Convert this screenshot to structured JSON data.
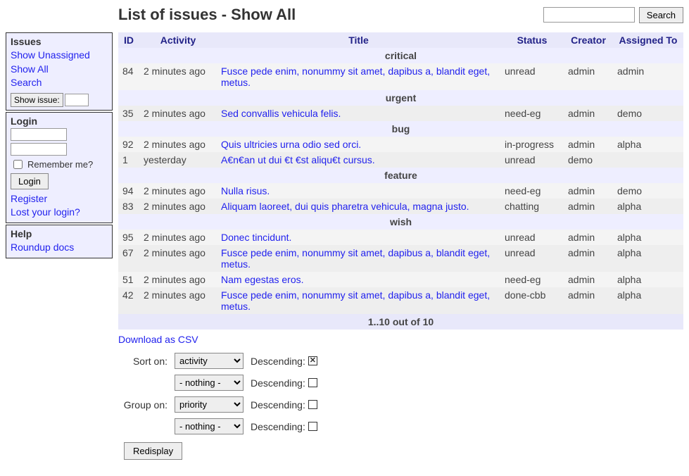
{
  "header": {
    "title": "List of issues - Show All",
    "search_placeholder": "",
    "search_button": "Search"
  },
  "sidebar": {
    "issues": {
      "heading": "Issues",
      "links": [
        "Show Unassigned",
        "Show All",
        "Search"
      ],
      "show_issue_button": "Show issue:"
    },
    "login": {
      "heading": "Login",
      "remember_label": "Remember me?",
      "login_button": "Login",
      "links": [
        "Register",
        "Lost your login?"
      ]
    },
    "help": {
      "heading": "Help",
      "links": [
        "Roundup docs"
      ]
    }
  },
  "table": {
    "columns": [
      "ID",
      "Activity",
      "Title",
      "Status",
      "Creator",
      "Assigned To"
    ],
    "groups": [
      {
        "label": "critical",
        "rows": [
          {
            "id": "84",
            "activity": "2 minutes ago",
            "title": "Fusce pede enim, nonummy sit amet, dapibus a, blandit eget, metus.",
            "status": "unread",
            "creator": "admin",
            "assigned": "admin"
          }
        ]
      },
      {
        "label": "urgent",
        "rows": [
          {
            "id": "35",
            "activity": "2 minutes ago",
            "title": "Sed convallis vehicula felis.",
            "status": "need-eg",
            "creator": "admin",
            "assigned": "demo"
          }
        ]
      },
      {
        "label": "bug",
        "rows": [
          {
            "id": "92",
            "activity": "2 minutes ago",
            "title": "Quis ultricies urna odio sed orci.",
            "status": "in-progress",
            "creator": "admin",
            "assigned": "alpha"
          },
          {
            "id": "1",
            "activity": "yesterday",
            "title": "A€n€an ut dui €t €st aliqu€t cursus.",
            "status": "unread",
            "creator": "demo",
            "assigned": ""
          }
        ]
      },
      {
        "label": "feature",
        "rows": [
          {
            "id": "94",
            "activity": "2 minutes ago",
            "title": "Nulla risus.",
            "status": "need-eg",
            "creator": "admin",
            "assigned": "demo"
          },
          {
            "id": "83",
            "activity": "2 minutes ago",
            "title": "Aliquam laoreet, dui quis pharetra vehicula, magna justo.",
            "status": "chatting",
            "creator": "admin",
            "assigned": "alpha"
          }
        ]
      },
      {
        "label": "wish",
        "rows": [
          {
            "id": "95",
            "activity": "2 minutes ago",
            "title": "Donec tincidunt.",
            "status": "unread",
            "creator": "admin",
            "assigned": "alpha"
          },
          {
            "id": "67",
            "activity": "2 minutes ago",
            "title": "Fusce pede enim, nonummy sit amet, dapibus a, blandit eget, metus.",
            "status": "unread",
            "creator": "admin",
            "assigned": "alpha"
          },
          {
            "id": "51",
            "activity": "2 minutes ago",
            "title": "Nam egestas eros.",
            "status": "need-eg",
            "creator": "admin",
            "assigned": "alpha"
          },
          {
            "id": "42",
            "activity": "2 minutes ago",
            "title": "Fusce pede enim, nonummy sit amet, dapibus a, blandit eget, metus.",
            "status": "done-cbb",
            "creator": "admin",
            "assigned": "alpha"
          }
        ]
      }
    ],
    "summary": "1..10 out of 10"
  },
  "csv_link": "Download as CSV",
  "sortgroup": {
    "sort_label": "Sort on:",
    "group_label": "Group on:",
    "desc_label": "Descending:",
    "rows": [
      {
        "label": "Sort on:",
        "select": "activity",
        "checked": true
      },
      {
        "label": "",
        "select": "- nothing -",
        "checked": false
      },
      {
        "label": "Group on:",
        "select": "priority",
        "checked": false
      },
      {
        "label": "",
        "select": "- nothing -",
        "checked": false
      }
    ],
    "redisplay": "Redisplay",
    "options": [
      "activity",
      "priority",
      "- nothing -"
    ]
  },
  "colors": {
    "header_bg": "#e8e8fa",
    "group_bg": "#eef",
    "row_odd": "#f4f4f4",
    "row_even": "#eee",
    "link": "#22e"
  }
}
